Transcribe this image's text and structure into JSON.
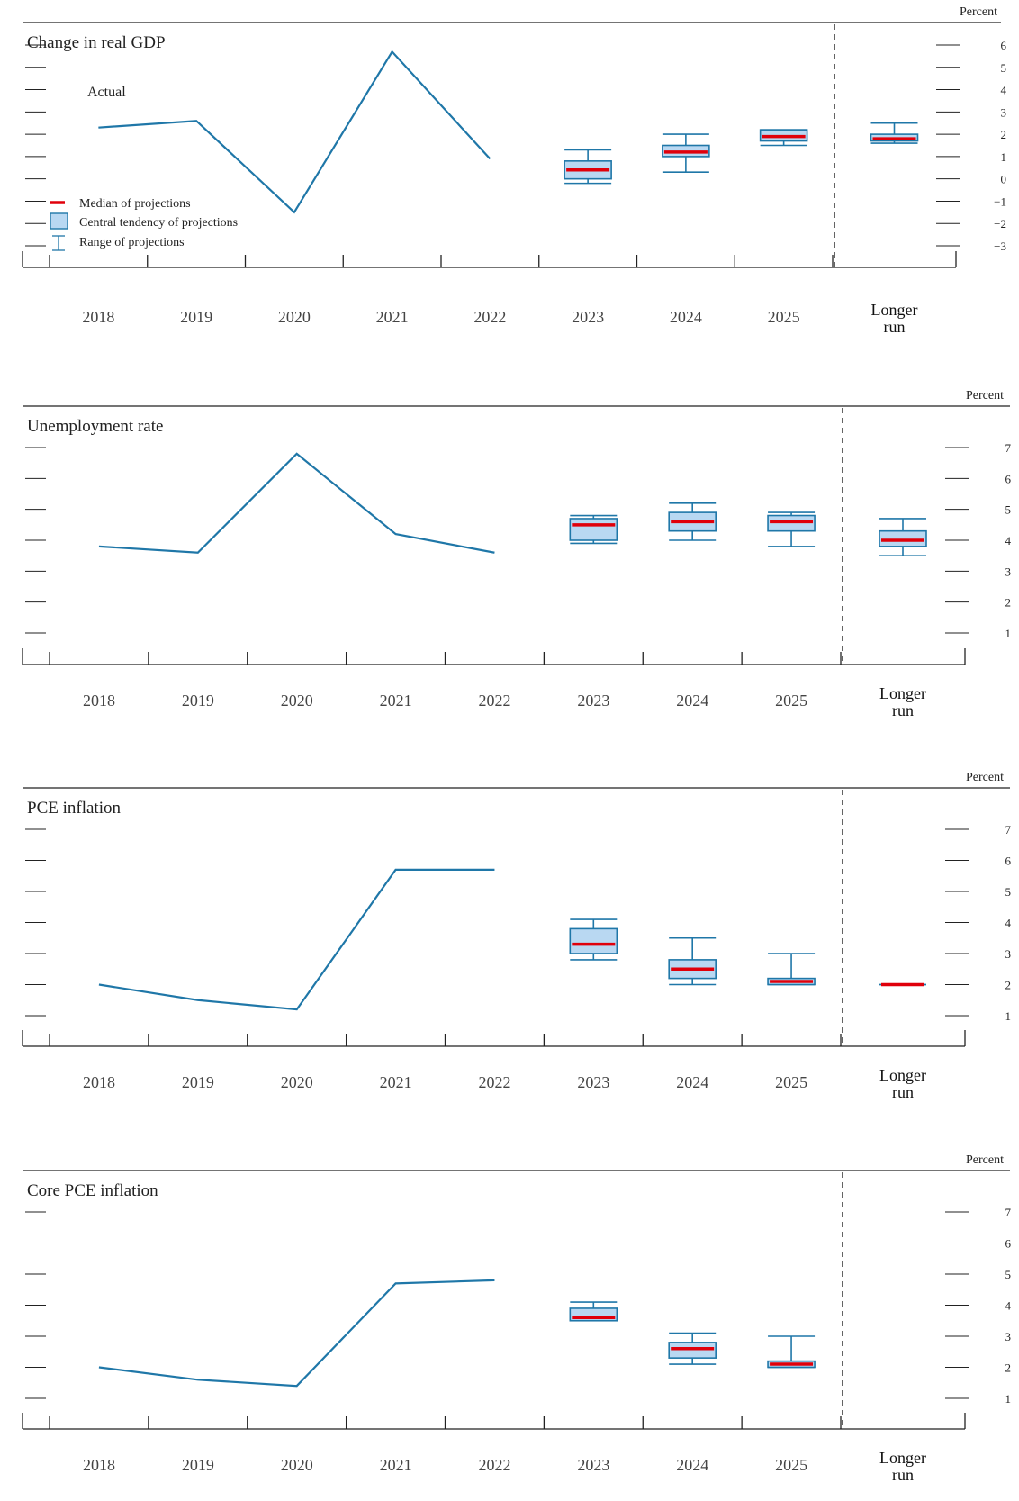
{
  "colors": {
    "actual_line": "#1f77a8",
    "box_fill": "#b9d8f2",
    "box_stroke": "#1f77a8",
    "median": "#e0000b",
    "axis": "#222222",
    "divider": "#222222"
  },
  "legend": {
    "median": "Median of projections",
    "central": "Central tendency of projections",
    "range": "Range of projections"
  },
  "annotation": {
    "actual": "Actual"
  },
  "chart_data": [
    {
      "type": "line+box",
      "title": "Change in real GDP",
      "unit_label": "Percent",
      "categories": [
        "2018",
        "2019",
        "2020",
        "2021",
        "2022",
        "2023",
        "2024",
        "2025",
        "Longer run"
      ],
      "ylim": [
        -3.5,
        7
      ],
      "yticks": [
        6,
        5,
        4,
        3,
        2,
        1,
        0,
        -1,
        -2,
        -3
      ],
      "ytick_labels": [
        "6",
        "5",
        "4",
        "3",
        "2",
        "1",
        "0",
        "−1",
        "−2",
        "−3"
      ],
      "actual": {
        "x": [
          "2018",
          "2019",
          "2020",
          "2021",
          "2022"
        ],
        "values": [
          2.3,
          2.6,
          -1.5,
          5.7,
          0.9
        ]
      },
      "projections": [
        {
          "x": "2023",
          "median": 0.4,
          "central": [
            0.0,
            0.8
          ],
          "range": [
            -0.2,
            1.3
          ]
        },
        {
          "x": "2024",
          "median": 1.2,
          "central": [
            1.0,
            1.5
          ],
          "range": [
            0.3,
            2.0
          ]
        },
        {
          "x": "2025",
          "median": 1.9,
          "central": [
            1.7,
            2.2
          ],
          "range": [
            1.5,
            2.2
          ]
        },
        {
          "x": "Longer run",
          "median": 1.8,
          "central": [
            1.7,
            2.0
          ],
          "range": [
            1.6,
            2.5
          ]
        }
      ]
    },
    {
      "type": "line+box",
      "title": "Unemployment rate",
      "unit_label": "Percent",
      "categories": [
        "2018",
        "2019",
        "2020",
        "2021",
        "2022",
        "2023",
        "2024",
        "2025",
        "Longer run"
      ],
      "ylim": [
        0.4,
        7.8
      ],
      "yticks": [
        7,
        6,
        5,
        4,
        3,
        2,
        1
      ],
      "ytick_labels": [
        "7",
        "6",
        "5",
        "4",
        "3",
        "2",
        "1"
      ],
      "actual": {
        "x": [
          "2018",
          "2019",
          "2020",
          "2021",
          "2022"
        ],
        "values": [
          3.8,
          3.6,
          6.8,
          4.2,
          3.6
        ]
      },
      "projections": [
        {
          "x": "2023",
          "median": 4.5,
          "central": [
            4.0,
            4.7
          ],
          "range": [
            3.9,
            4.8
          ]
        },
        {
          "x": "2024",
          "median": 4.6,
          "central": [
            4.3,
            4.9
          ],
          "range": [
            4.0,
            5.2
          ]
        },
        {
          "x": "2025",
          "median": 4.6,
          "central": [
            4.3,
            4.8
          ],
          "range": [
            3.8,
            4.9
          ]
        },
        {
          "x": "Longer run",
          "median": 4.0,
          "central": [
            3.8,
            4.3
          ],
          "range": [
            3.5,
            4.7
          ]
        }
      ]
    },
    {
      "type": "line+box",
      "title": "PCE inflation",
      "unit_label": "Percent",
      "categories": [
        "2018",
        "2019",
        "2020",
        "2021",
        "2022",
        "2023",
        "2024",
        "2025",
        "Longer run"
      ],
      "ylim": [
        0.4,
        7.8
      ],
      "yticks": [
        7,
        6,
        5,
        4,
        3,
        2,
        1
      ],
      "ytick_labels": [
        "7",
        "6",
        "5",
        "4",
        "3",
        "2",
        "1"
      ],
      "actual": {
        "x": [
          "2018",
          "2019",
          "2020",
          "2021",
          "2022"
        ],
        "values": [
          2.0,
          1.5,
          1.2,
          5.7,
          5.7
        ]
      },
      "projections": [
        {
          "x": "2023",
          "median": 3.3,
          "central": [
            3.0,
            3.8
          ],
          "range": [
            2.8,
            4.1
          ]
        },
        {
          "x": "2024",
          "median": 2.5,
          "central": [
            2.2,
            2.8
          ],
          "range": [
            2.0,
            3.5
          ]
        },
        {
          "x": "2025",
          "median": 2.1,
          "central": [
            2.0,
            2.2
          ],
          "range": [
            2.0,
            3.0
          ]
        },
        {
          "x": "Longer run",
          "median": 2.0,
          "central": [
            2.0,
            2.0
          ],
          "range": [
            2.0,
            2.0
          ]
        }
      ]
    },
    {
      "type": "line+box",
      "title": "Core PCE inflation",
      "unit_label": "Percent",
      "categories": [
        "2018",
        "2019",
        "2020",
        "2021",
        "2022",
        "2023",
        "2024",
        "2025",
        "Longer run"
      ],
      "ylim": [
        0.4,
        7.8
      ],
      "yticks": [
        7,
        6,
        5,
        4,
        3,
        2,
        1
      ],
      "ytick_labels": [
        "7",
        "6",
        "5",
        "4",
        "3",
        "2",
        "1"
      ],
      "actual": {
        "x": [
          "2018",
          "2019",
          "2020",
          "2021",
          "2022"
        ],
        "values": [
          2.0,
          1.6,
          1.4,
          4.7,
          4.8
        ]
      },
      "projections": [
        {
          "x": "2023",
          "median": 3.6,
          "central": [
            3.5,
            3.9
          ],
          "range": [
            3.5,
            4.1
          ]
        },
        {
          "x": "2024",
          "median": 2.6,
          "central": [
            2.3,
            2.8
          ],
          "range": [
            2.1,
            3.1
          ]
        },
        {
          "x": "2025",
          "median": 2.1,
          "central": [
            2.0,
            2.2
          ],
          "range": [
            2.0,
            3.0
          ]
        }
      ]
    }
  ]
}
